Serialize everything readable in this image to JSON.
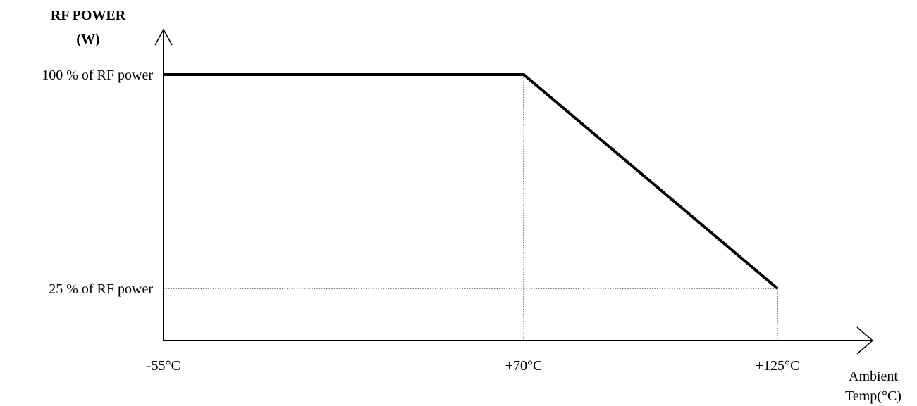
{
  "chart_data": {
    "type": "line",
    "title": "",
    "ylabel": [
      "RF POWER",
      "(W)"
    ],
    "xlabel": [
      "Ambient",
      "Temp(°C)"
    ],
    "x_ticks": [
      {
        "value": -55,
        "label": "-55°C"
      },
      {
        "value": 70,
        "label": "+70°C"
      },
      {
        "value": 125,
        "label": "+125°C"
      }
    ],
    "y_ticks": [
      {
        "value": 100,
        "label": "100 % of RF power"
      },
      {
        "value": 25,
        "label": "25 % of RF power"
      }
    ],
    "series": [
      {
        "x": [
          -55,
          70,
          125
        ],
        "y": [
          100,
          100,
          25
        ]
      }
    ],
    "xlim": [
      -55,
      125
    ],
    "ylim": [
      0,
      100
    ],
    "grid": false,
    "guide_lines": "dotted"
  }
}
